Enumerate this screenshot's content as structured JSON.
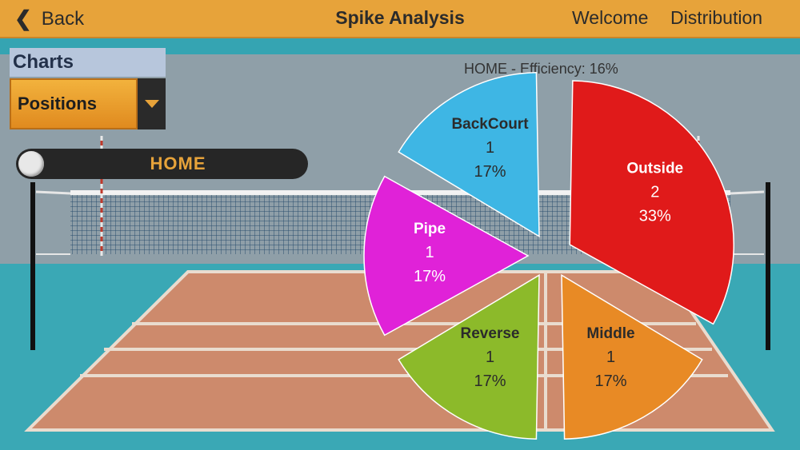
{
  "header": {
    "back_label": "Back",
    "title": "Spike Analysis",
    "nav_welcome": "Welcome",
    "nav_distribution": "Distribution"
  },
  "controls": {
    "charts_label": "Charts",
    "dropdown_value": "Positions",
    "toggle_label": "HOME",
    "toggle_state": "home"
  },
  "chart_data": {
    "type": "pie",
    "title": "HOME - Efficiency: 16%",
    "slices": [
      {
        "label": "Outside",
        "count": "2",
        "percent": "33%",
        "value": 2,
        "color": "#e01a1a",
        "text_color": "#ffffff"
      },
      {
        "label": "Middle",
        "count": "1",
        "percent": "17%",
        "value": 1,
        "color": "#e88a25",
        "text_color": "#2b2b2b"
      },
      {
        "label": "Reverse",
        "count": "1",
        "percent": "17%",
        "value": 1,
        "color": "#8cba2a",
        "text_color": "#2b2b2b"
      },
      {
        "label": "Pipe",
        "count": "1",
        "percent": "17%",
        "value": 1,
        "color": "#e022d8",
        "text_color": "#ffffff"
      },
      {
        "label": "BackCourt",
        "count": "1",
        "percent": "17%",
        "value": 1,
        "color": "#3eb6e4",
        "text_color": "#2b2b2b"
      }
    ]
  }
}
